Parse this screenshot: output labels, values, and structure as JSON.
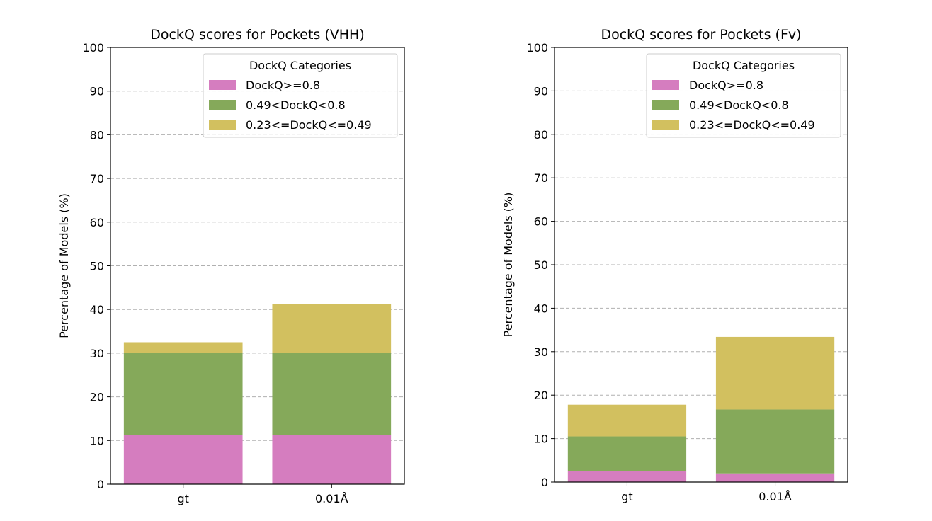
{
  "colors": {
    "DockQ>=0.8": "#d57dbf",
    "0.49<DockQ<0.8": "#85a95a",
    "0.23<=DockQ<=0.49": "#d2c05f"
  },
  "chart_data": [
    {
      "type": "bar",
      "stacked": true,
      "title": "DockQ scores for Pockets (VHH)",
      "xlabel": "",
      "ylabel": "Percentage of Models (%)",
      "ylim": [
        0,
        100
      ],
      "yticks": [
        0,
        10,
        20,
        30,
        40,
        50,
        60,
        70,
        80,
        90,
        100
      ],
      "grid": "y-dashed",
      "legend_title": "DockQ Categories",
      "legend_position": "top-right",
      "categories": [
        "gt",
        "0.01Å"
      ],
      "series": [
        {
          "name": "DockQ>=0.8",
          "values": [
            11.3,
            11.3
          ]
        },
        {
          "name": "0.49<DockQ<0.8",
          "values": [
            18.7,
            18.7
          ]
        },
        {
          "name": "0.23<=DockQ<=0.49",
          "values": [
            2.5,
            11.2
          ]
        }
      ]
    },
    {
      "type": "bar",
      "stacked": true,
      "title": "DockQ scores for Pockets (Fv)",
      "xlabel": "",
      "ylabel": "Percentage of Models (%)",
      "ylim": [
        0,
        100
      ],
      "yticks": [
        0,
        10,
        20,
        30,
        40,
        50,
        60,
        70,
        80,
        90,
        100
      ],
      "grid": "y-dashed",
      "legend_title": "DockQ Categories",
      "legend_position": "top-right",
      "categories": [
        "gt",
        "0.01Å"
      ],
      "series": [
        {
          "name": "DockQ>=0.8",
          "values": [
            2.5,
            2.0
          ]
        },
        {
          "name": "0.49<DockQ<0.8",
          "values": [
            8.0,
            14.7
          ]
        },
        {
          "name": "0.23<=DockQ<=0.49",
          "values": [
            7.3,
            16.7
          ]
        }
      ]
    }
  ]
}
